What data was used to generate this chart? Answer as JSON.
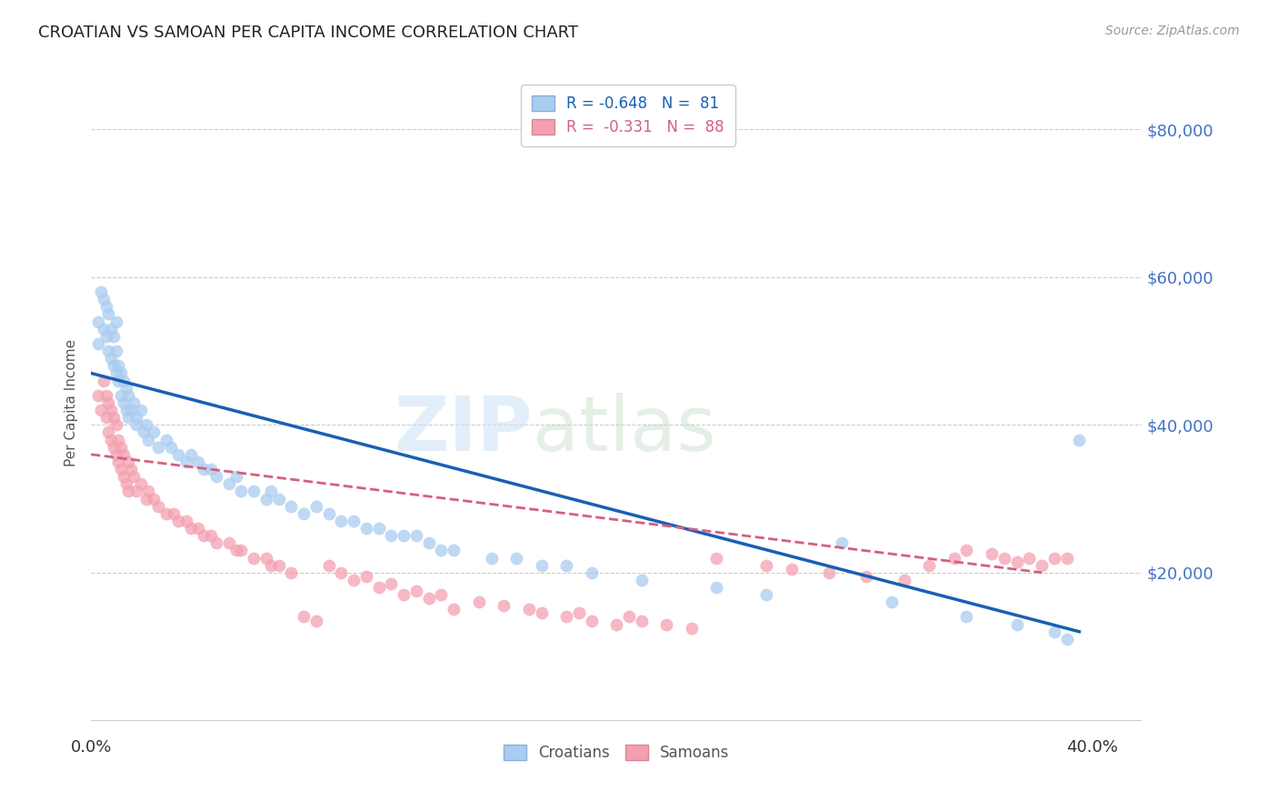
{
  "title": "CROATIAN VS SAMOAN PER CAPITA INCOME CORRELATION CHART",
  "source": "Source: ZipAtlas.com",
  "ylabel": "Per Capita Income",
  "xlim": [
    0.0,
    0.42
  ],
  "ylim": [
    -2000,
    88000
  ],
  "watermark_zip": "ZIP",
  "watermark_atlas": "atlas",
  "croatian_color": "#aaccf0",
  "samoan_color": "#f4a0b0",
  "trendline_croatian_color": "#1a5fb4",
  "trendline_samoan_color": "#d46080",
  "background_color": "#ffffff",
  "ytick_color": "#4472c4",
  "grid_color": "#cccccc",
  "croatians_x": [
    0.003,
    0.003,
    0.004,
    0.005,
    0.005,
    0.006,
    0.006,
    0.007,
    0.007,
    0.008,
    0.008,
    0.009,
    0.009,
    0.01,
    0.01,
    0.01,
    0.011,
    0.011,
    0.012,
    0.012,
    0.013,
    0.013,
    0.014,
    0.014,
    0.015,
    0.015,
    0.016,
    0.017,
    0.018,
    0.018,
    0.02,
    0.021,
    0.022,
    0.023,
    0.025,
    0.027,
    0.03,
    0.032,
    0.035,
    0.038,
    0.04,
    0.043,
    0.045,
    0.048,
    0.05,
    0.055,
    0.058,
    0.06,
    0.065,
    0.07,
    0.072,
    0.075,
    0.08,
    0.085,
    0.09,
    0.095,
    0.1,
    0.105,
    0.11,
    0.115,
    0.12,
    0.125,
    0.13,
    0.135,
    0.14,
    0.145,
    0.16,
    0.17,
    0.18,
    0.19,
    0.2,
    0.22,
    0.25,
    0.27,
    0.3,
    0.32,
    0.35,
    0.37,
    0.385,
    0.39,
    0.395
  ],
  "croatians_y": [
    54000,
    51000,
    58000,
    53000,
    57000,
    52000,
    56000,
    50000,
    55000,
    49000,
    53000,
    48000,
    52000,
    47000,
    50000,
    54000,
    46000,
    48000,
    44000,
    47000,
    43000,
    46000,
    42000,
    45000,
    41000,
    44000,
    42000,
    43000,
    40000,
    41000,
    42000,
    39000,
    40000,
    38000,
    39000,
    37000,
    38000,
    37000,
    36000,
    35000,
    36000,
    35000,
    34000,
    34000,
    33000,
    32000,
    33000,
    31000,
    31000,
    30000,
    31000,
    30000,
    29000,
    28000,
    29000,
    28000,
    27000,
    27000,
    26000,
    26000,
    25000,
    25000,
    25000,
    24000,
    23000,
    23000,
    22000,
    22000,
    21000,
    21000,
    20000,
    19000,
    18000,
    17000,
    24000,
    16000,
    14000,
    13000,
    12000,
    11000,
    38000
  ],
  "samoans_x": [
    0.003,
    0.004,
    0.005,
    0.006,
    0.006,
    0.007,
    0.007,
    0.008,
    0.008,
    0.009,
    0.009,
    0.01,
    0.01,
    0.011,
    0.011,
    0.012,
    0.012,
    0.013,
    0.013,
    0.014,
    0.015,
    0.015,
    0.016,
    0.017,
    0.018,
    0.02,
    0.022,
    0.023,
    0.025,
    0.027,
    0.03,
    0.033,
    0.035,
    0.038,
    0.04,
    0.043,
    0.045,
    0.048,
    0.05,
    0.055,
    0.058,
    0.06,
    0.065,
    0.07,
    0.072,
    0.075,
    0.08,
    0.085,
    0.09,
    0.095,
    0.1,
    0.105,
    0.11,
    0.115,
    0.12,
    0.125,
    0.13,
    0.135,
    0.14,
    0.145,
    0.155,
    0.165,
    0.175,
    0.18,
    0.19,
    0.195,
    0.2,
    0.21,
    0.215,
    0.22,
    0.23,
    0.24,
    0.25,
    0.27,
    0.28,
    0.295,
    0.31,
    0.325,
    0.335,
    0.345,
    0.35,
    0.36,
    0.365,
    0.37,
    0.375,
    0.38,
    0.385,
    0.39
  ],
  "samoans_y": [
    44000,
    42000,
    46000,
    41000,
    44000,
    39000,
    43000,
    38000,
    42000,
    37000,
    41000,
    36000,
    40000,
    35000,
    38000,
    34000,
    37000,
    33000,
    36000,
    32000,
    35000,
    31000,
    34000,
    33000,
    31000,
    32000,
    30000,
    31000,
    30000,
    29000,
    28000,
    28000,
    27000,
    27000,
    26000,
    26000,
    25000,
    25000,
    24000,
    24000,
    23000,
    23000,
    22000,
    22000,
    21000,
    21000,
    20000,
    14000,
    13500,
    21000,
    20000,
    19000,
    19500,
    18000,
    18500,
    17000,
    17500,
    16500,
    17000,
    15000,
    16000,
    15500,
    15000,
    14500,
    14000,
    14500,
    13500,
    13000,
    14000,
    13500,
    13000,
    12500,
    22000,
    21000,
    20500,
    20000,
    19500,
    19000,
    21000,
    22000,
    23000,
    22500,
    22000,
    21500,
    22000,
    21000,
    22000,
    22000
  ]
}
